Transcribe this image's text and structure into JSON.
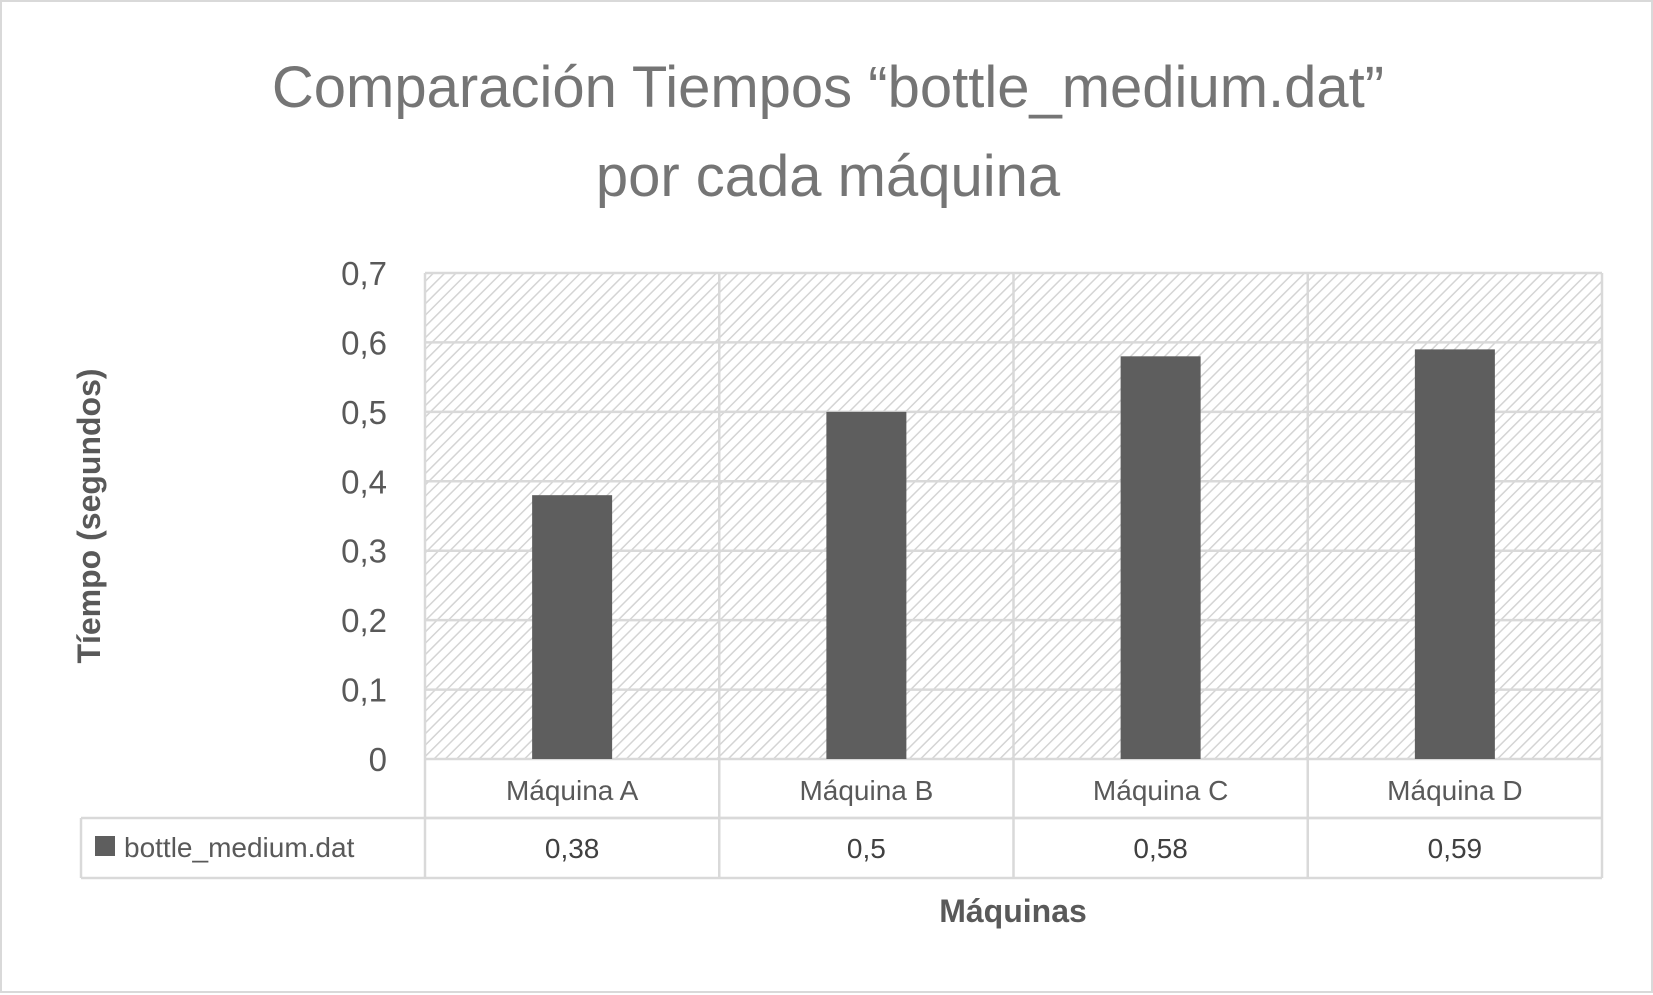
{
  "chart_data": {
    "type": "bar",
    "title": "Comparación Tiempos “bottle_medium.dat”",
    "subtitle": "por cada máquina",
    "xlabel": "Máquinas",
    "ylabel": "Tíempo (segundos)",
    "categories": [
      "Máquina A",
      "Máquina B",
      "Máquina C",
      "Máquina D"
    ],
    "series": [
      {
        "name": "bottle_medium.dat",
        "values": [
          0.38,
          0.5,
          0.58,
          0.59
        ],
        "color": "#5e5e5e"
      }
    ],
    "data_table_values": [
      "0,38",
      "0,5",
      "0,58",
      "0,59"
    ],
    "ylim": [
      0,
      0.7
    ],
    "yticks": [
      "0",
      "0,1",
      "0,2",
      "0,3",
      "0,4",
      "0,5",
      "0,6",
      "0,7"
    ],
    "grid": true,
    "legend": "data table, left of values",
    "colors": {
      "bar": "#5e5e5e",
      "gridline": "#d9d9d9",
      "plot_hatch": "#d4d4d4",
      "title": "#757575",
      "text": "#595959"
    }
  }
}
